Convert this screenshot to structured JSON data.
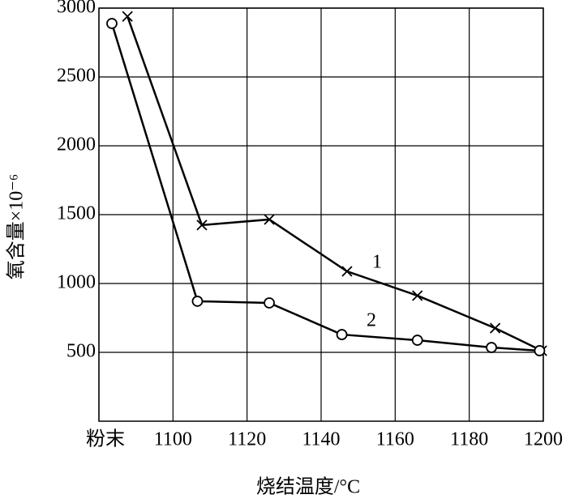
{
  "chart_data": {
    "type": "line",
    "xlabel": "烧结温度/°C",
    "ylabel": "氧含量×10⁻⁶",
    "xlim": [
      1080,
      1200
    ],
    "xticks": [
      {
        "value": 1080,
        "label": "粉末"
      },
      1100,
      1120,
      1140,
      1160,
      1180,
      1200
    ],
    "ylim": [
      0,
      3000
    ],
    "yticks": [
      500,
      1000,
      1500,
      2000,
      2500,
      3000
    ],
    "grid": true,
    "series": [
      {
        "name": "1",
        "color": "#000000",
        "marker": "x",
        "x": [
          1087.7,
          1107.8,
          1126,
          1147,
          1166,
          1187,
          1199.6
        ],
        "values": [
          2940,
          1424,
          1465,
          1088,
          912,
          676,
          512
        ]
      },
      {
        "name": "2",
        "color": "#000000",
        "marker": "o",
        "x": [
          1083.5,
          1106.6,
          1126,
          1145.6,
          1166,
          1186,
          1199
        ],
        "values": [
          2888,
          871,
          859,
          629,
          588,
          535,
          512
        ]
      }
    ]
  }
}
